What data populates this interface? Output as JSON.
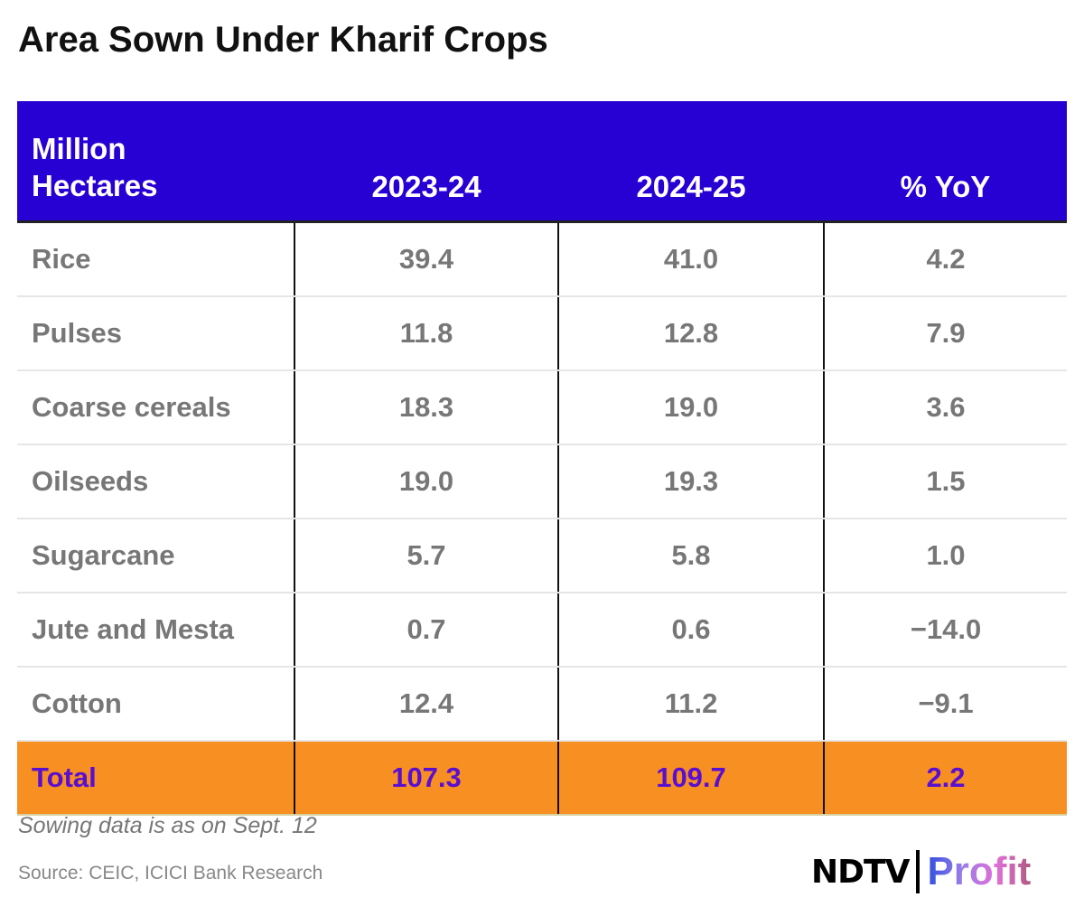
{
  "title": "Area Sown Under Kharif Crops",
  "table": {
    "headers": [
      "Million\nHectares",
      "2023-24",
      "2024-25",
      "% YoY"
    ],
    "rows": [
      [
        "Rice",
        "39.4",
        "41.0",
        "4.2"
      ],
      [
        "Pulses",
        "11.8",
        "12.8",
        "7.9"
      ],
      [
        "Coarse cereals",
        "18.3",
        "19.0",
        "3.6"
      ],
      [
        "Oilseeds",
        "19.0",
        "19.3",
        "1.5"
      ],
      [
        "Sugarcane",
        "5.7",
        "5.8",
        "1.0"
      ],
      [
        "Jute and Mesta",
        "0.7",
        "0.6",
        "−14.0"
      ],
      [
        "Cotton",
        "12.4",
        "11.2",
        "−9.1"
      ]
    ],
    "total": [
      "Total",
      "107.3",
      "109.7",
      "2.2"
    ]
  },
  "note": "Sowing data is as on Sept. 12",
  "source": "Source: CEIC, ICICI Bank Research",
  "logo": {
    "left": "NDTV",
    "right": "Profit"
  },
  "colors": {
    "header": "#2700d4",
    "total_row": "#f78f23",
    "total_text": "#5a0fd0"
  }
}
